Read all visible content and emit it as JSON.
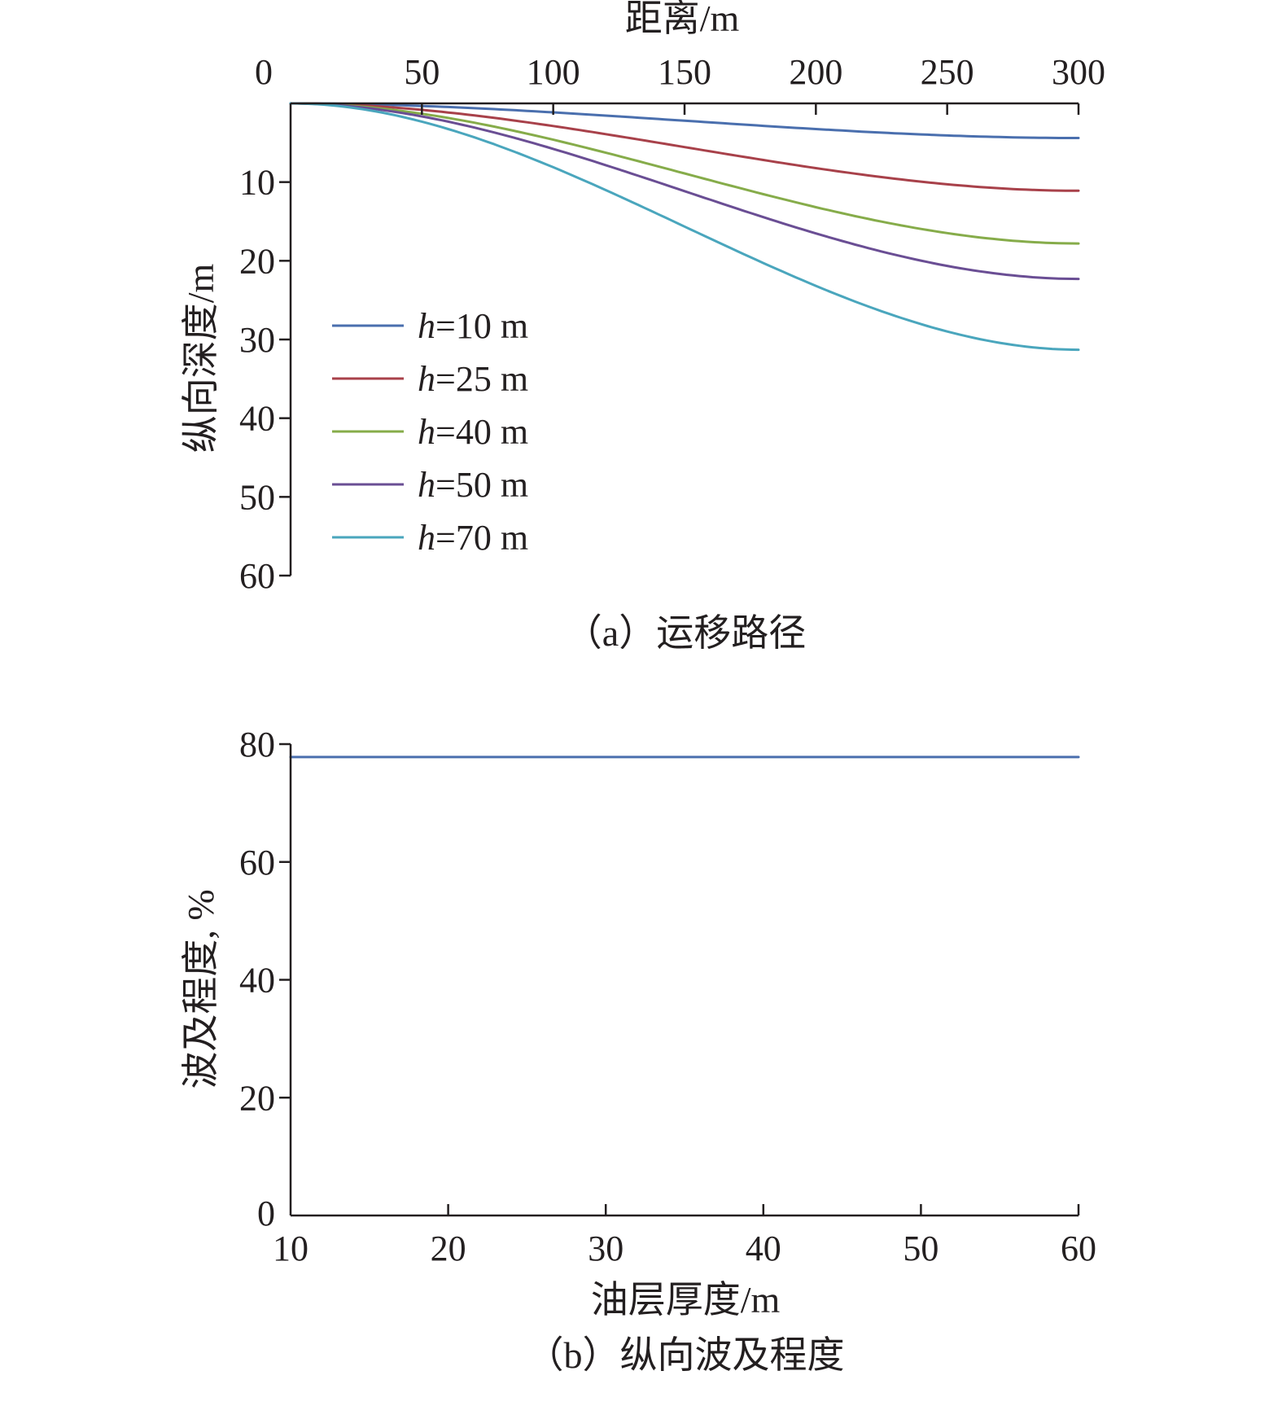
{
  "chart_data": [
    {
      "type": "line",
      "caption": "（a）运移路径",
      "xlabel": "距离/m",
      "ylabel": "纵向深度/m",
      "xlim": [
        0,
        300
      ],
      "ylim": [
        0,
        60
      ],
      "y_inverted": true,
      "x_axis_position": "top",
      "x_ticks": [
        0,
        50,
        100,
        150,
        200,
        250,
        300
      ],
      "y_ticks": [
        10,
        20,
        30,
        40,
        50,
        60
      ],
      "legend_position": "middle-left",
      "series": [
        {
          "name": "h=10 m",
          "label_italic": "h",
          "label_rest": "=10 m",
          "color": "#4a6fae",
          "final_depth": 4.4
        },
        {
          "name": "h=25 m",
          "label_italic": "h",
          "label_rest": "=25 m",
          "color": "#a8414a",
          "final_depth": 11.1
        },
        {
          "name": "h=40 m",
          "label_italic": "h",
          "label_rest": "=40 m",
          "color": "#86ac4a",
          "final_depth": 17.8
        },
        {
          "name": "h=50 m",
          "label_italic": "h",
          "label_rest": "=50 m",
          "color": "#6a4e94",
          "final_depth": 22.3
        },
        {
          "name": "h=70 m",
          "label_italic": "h",
          "label_rest": "=70 m",
          "color": "#4aa6bd",
          "final_depth": 31.3
        }
      ]
    },
    {
      "type": "line",
      "caption": "（b）纵向波及程度",
      "xlabel": "油层厚度/m",
      "ylabel": "波及程度, %",
      "xlim": [
        10,
        60
      ],
      "ylim": [
        0,
        80
      ],
      "x_ticks": [
        10,
        20,
        30,
        40,
        50,
        60
      ],
      "y_ticks": [
        0,
        20,
        40,
        60,
        80
      ],
      "series": [
        {
          "color": "#4a6fae",
          "x": [
            10,
            60
          ],
          "y": [
            77.8,
            77.8
          ]
        }
      ]
    }
  ]
}
